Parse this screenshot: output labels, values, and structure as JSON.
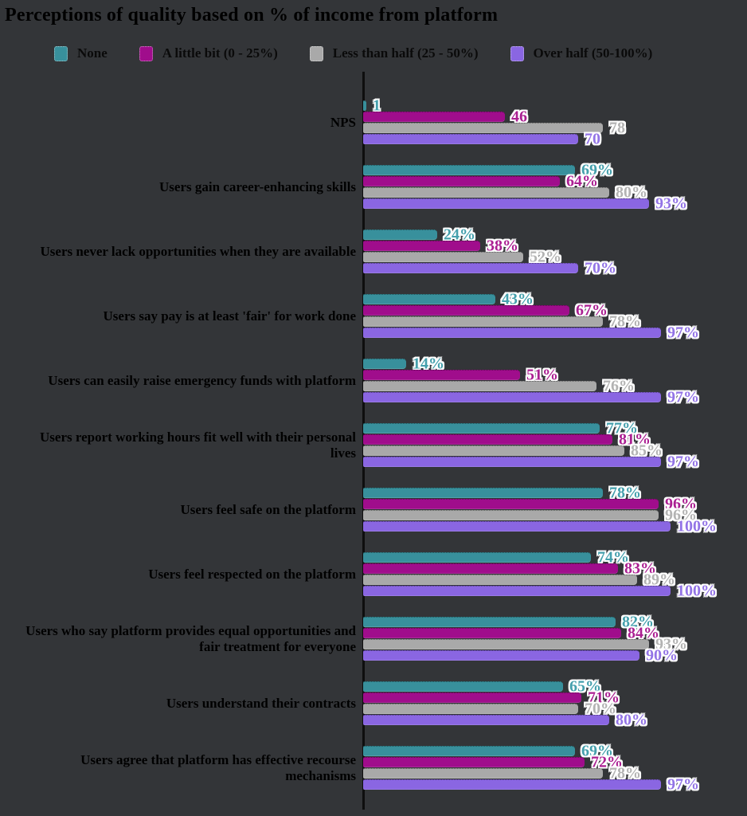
{
  "colors": {
    "background": "#333538",
    "axis": "#0e0e0e",
    "text": "#000000",
    "value_label_halo": "#ffffff"
  },
  "chart_data": {
    "type": "bar",
    "orientation": "horizontal",
    "title": "Perceptions of quality based on % of income from platform",
    "legend_position": "top",
    "grid": false,
    "xlim": [
      0,
      100
    ],
    "xlabel": "",
    "ylabel": "",
    "categories": [
      "NPS",
      "Users gain career-enhancing skills",
      "Users never lack opportunities when they are available",
      "Users say pay is at least 'fair' for work done",
      "Users can easily raise emergency funds with platform",
      "Users report working hours fit well with their personal lives",
      "Users feel safe on the platform",
      "Users feel respected on the platform",
      "Users who say platform provides equal opportunities and fair treatment for everyone",
      "Users understand their contracts",
      "Users agree that platform has effective recourse mechanisms"
    ],
    "series": [
      {
        "name": "None",
        "color": "#38909c",
        "label_color": "#45a0ad",
        "values": [
          1,
          69,
          24,
          43,
          14,
          77,
          78,
          74,
          82,
          65,
          69
        ],
        "display_labels": [
          "1",
          "69%",
          "24%",
          "43%",
          "14%",
          "77%",
          "78%",
          "74%",
          "82%",
          "65%",
          "69%"
        ]
      },
      {
        "name": "A little bit (0 - 25%)",
        "color": "#a00d8c",
        "label_color": "#ab1f92",
        "values": [
          46,
          64,
          38,
          67,
          51,
          81,
          96,
          83,
          84,
          71,
          72
        ],
        "display_labels": [
          "46",
          "64%",
          "38%",
          "67%",
          "51%",
          "81%",
          "96%",
          "83%",
          "84%",
          "71%",
          "72%"
        ]
      },
      {
        "name": "Less than half (25 - 50%)",
        "color": "#a9a9a9",
        "label_color": "#b3b3b3",
        "values": [
          78,
          80,
          52,
          78,
          76,
          85,
          96,
          89,
          93,
          70,
          78
        ],
        "display_labels": [
          "78",
          "80%",
          "52%",
          "78%",
          "76%",
          "85%",
          "96%",
          "89%",
          "93%",
          "70%",
          "78%"
        ]
      },
      {
        "name": "Over half (50-100%)",
        "color": "#8a66e2",
        "label_color": "#9374e6",
        "values": [
          70,
          93,
          70,
          97,
          97,
          97,
          100,
          100,
          90,
          80,
          97
        ],
        "display_labels": [
          "70",
          "93%",
          "70%",
          "97%",
          "97%",
          "97%",
          "100%",
          "100%",
          "90%",
          "80%",
          "97%"
        ]
      }
    ]
  }
}
